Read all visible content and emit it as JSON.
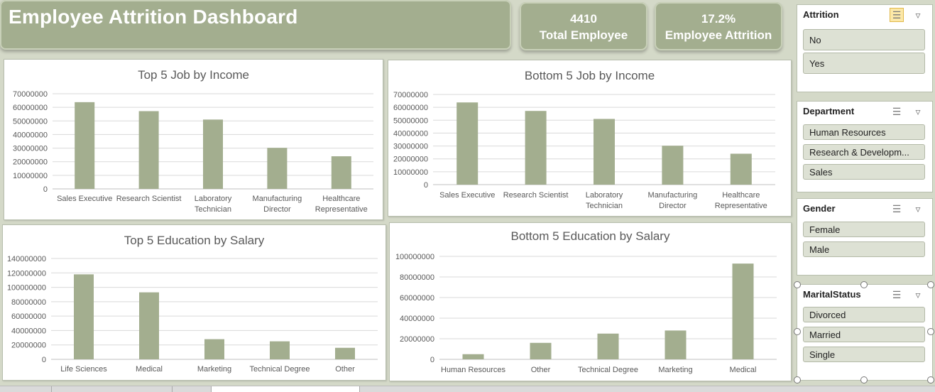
{
  "dashboard": {
    "title": "Employee Attrition Dashboard"
  },
  "kpis": [
    {
      "value": "4410",
      "label": "Total Employee"
    },
    {
      "value": "17.2%",
      "label": "Employee Attrition"
    }
  ],
  "chart_data": [
    {
      "type": "bar",
      "title": "Top 5 Job by Income",
      "categories": [
        "Sales Executive",
        "Research Scientist",
        "Laboratory Technician",
        "Manufacturing Director",
        "Healthcare Representative"
      ],
      "category_lines": [
        [
          "Sales Executive"
        ],
        [
          "Research Scientist"
        ],
        [
          "Laboratory",
          "Technician"
        ],
        [
          "Manufacturing",
          "Director"
        ],
        [
          "Healthcare",
          "Representative"
        ]
      ],
      "values": [
        63800000,
        57200000,
        51000000,
        30200000,
        24000000
      ],
      "yticks": [
        "70000000",
        "60000000",
        "50000000",
        "40000000",
        "30000000",
        "20000000",
        "10000000",
        "0"
      ],
      "ylim": [
        0,
        70000000
      ],
      "bar_color": "#a3ae8f",
      "grid": true
    },
    {
      "type": "bar",
      "title": "Bottom 5 Job by Income",
      "categories": [
        "Sales Executive",
        "Research Scientist",
        "Laboratory Technician",
        "Manufacturing Director",
        "Healthcare Representative"
      ],
      "category_lines": [
        [
          "Sales Executive"
        ],
        [
          "Research Scientist"
        ],
        [
          "Laboratory",
          "Technician"
        ],
        [
          "Manufacturing",
          "Director"
        ],
        [
          "Healthcare",
          "Representative"
        ]
      ],
      "values": [
        63800000,
        57200000,
        51000000,
        30200000,
        24000000
      ],
      "yticks": [
        "70000000",
        "60000000",
        "50000000",
        "40000000",
        "30000000",
        "20000000",
        "10000000",
        "0"
      ],
      "ylim": [
        0,
        70000000
      ],
      "bar_color": "#a3ae8f",
      "grid": true
    },
    {
      "type": "bar",
      "title": "Top 5 Education by Salary",
      "categories": [
        "Life Sciences",
        "Medical",
        "Marketing",
        "Technical Degree",
        "Other"
      ],
      "category_lines": [
        [
          "Life Sciences"
        ],
        [
          "Medical"
        ],
        [
          "Marketing"
        ],
        [
          "Technical Degree"
        ],
        [
          "Other"
        ]
      ],
      "values": [
        118000000,
        93000000,
        28000000,
        25000000,
        16000000
      ],
      "yticks": [
        "140000000",
        "120000000",
        "100000000",
        "80000000",
        "60000000",
        "40000000",
        "20000000",
        "0"
      ],
      "ylim": [
        0,
        140000000
      ],
      "bar_color": "#a3ae8f",
      "grid": true
    },
    {
      "type": "bar",
      "title": "Bottom 5 Education by Salary",
      "categories": [
        "Human Resources",
        "Other",
        "Technical Degree",
        "Marketing",
        "Medical"
      ],
      "category_lines": [
        [
          "Human Resources"
        ],
        [
          "Other"
        ],
        [
          "Technical Degree"
        ],
        [
          "Marketing"
        ],
        [
          "Medical"
        ]
      ],
      "values": [
        5000000,
        16000000,
        25000000,
        28000000,
        93000000
      ],
      "yticks": [
        "100000000",
        "80000000",
        "60000000",
        "40000000",
        "20000000",
        "0"
      ],
      "ylim": [
        0,
        100000000
      ],
      "bar_color": "#a3ae8f",
      "grid": true
    }
  ],
  "slicers": {
    "attrition": {
      "title": "Attrition",
      "items": [
        "No",
        "Yes"
      ]
    },
    "department": {
      "title": "Department",
      "items": [
        "Human Resources",
        "Research & Developm...",
        "Sales"
      ]
    },
    "gender": {
      "title": "Gender",
      "items": [
        "Female",
        "Male"
      ]
    },
    "marital": {
      "title": "MaritalStatus",
      "items": [
        "Divorced",
        "Married",
        "Single"
      ]
    }
  },
  "icons": {
    "multi_select": "multi-select-icon",
    "clear_filter": "clear-filter-icon"
  },
  "colors": {
    "banner": "#a3ae8f",
    "bar": "#a3ae8f",
    "background": "#d4d9c8"
  }
}
